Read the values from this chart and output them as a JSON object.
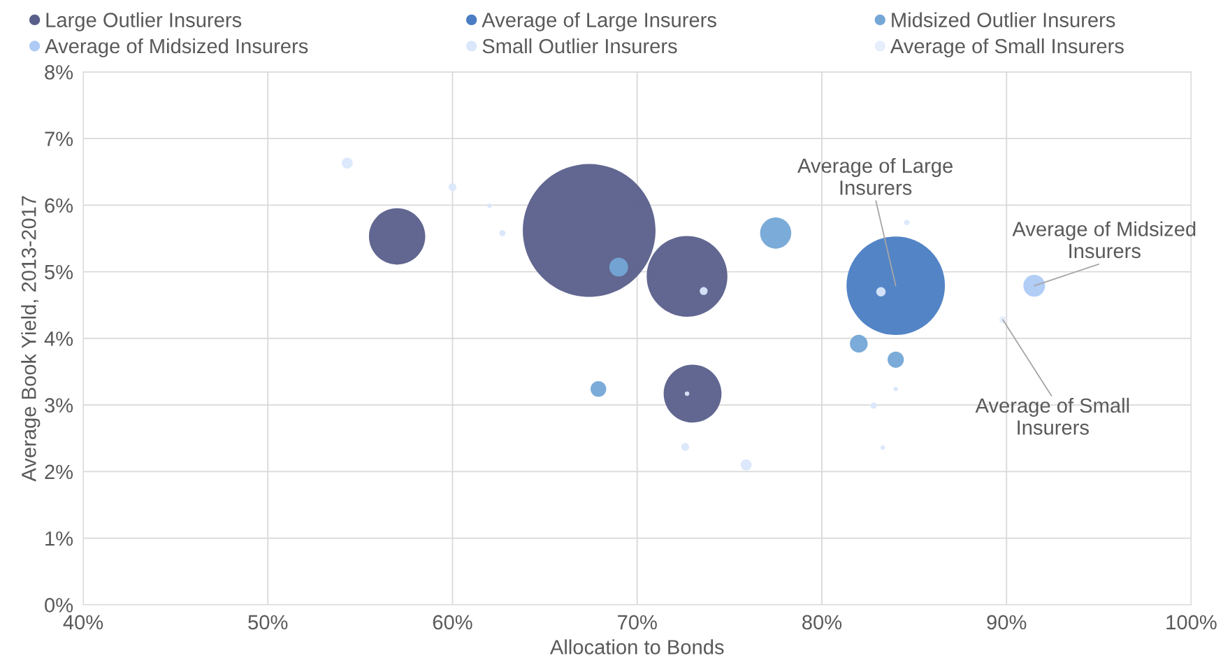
{
  "chart_data": {
    "type": "bubble",
    "xlabel": "Allocation to Bonds",
    "ylabel": "Average Book Yield, 2013-2017",
    "xlim": [
      40,
      100
    ],
    "xticks": [
      {
        "value": 40,
        "label": "40%"
      },
      {
        "value": 50,
        "label": "50%"
      },
      {
        "value": 60,
        "label": "60%"
      },
      {
        "value": 70,
        "label": "70%"
      },
      {
        "value": 80,
        "label": "80%"
      },
      {
        "value": 90,
        "label": "90%"
      },
      {
        "value": 100,
        "label": "100%"
      }
    ],
    "ylim": [
      0,
      8
    ],
    "yticks": [
      {
        "value": 0,
        "label": "0%"
      },
      {
        "value": 1,
        "label": "1%"
      },
      {
        "value": 2,
        "label": "2%"
      },
      {
        "value": 3,
        "label": "3%"
      },
      {
        "value": 4,
        "label": "4%"
      },
      {
        "value": 5,
        "label": "5%"
      },
      {
        "value": 6,
        "label": "6%"
      },
      {
        "value": 7,
        "label": "7%"
      },
      {
        "value": 8,
        "label": "8%"
      }
    ],
    "grid": true,
    "legend": "top",
    "series": [
      {
        "name": "Large Outlier Insurers",
        "color": "#585f8a",
        "x": [
          57.0,
          67.4,
          72.7,
          73.0
        ],
        "values": [
          5.53,
          5.62,
          4.93,
          3.17
        ],
        "sizes": [
          0.18,
          1,
          0.37,
          0.19
        ]
      },
      {
        "name": "Average of Large Insurers",
        "color": "#4a7dc3",
        "x": [
          84.0
        ],
        "values": [
          4.79
        ],
        "sizes": [
          0.55
        ]
      },
      {
        "name": "Midsized Outlier Insurers",
        "color": "#74a7d6",
        "x": [
          69.0,
          77.5,
          67.9,
          82.0,
          84.0
        ],
        "values": [
          5.07,
          5.58,
          3.24,
          3.92,
          3.68
        ],
        "sizes": [
          0.02,
          0.055,
          0.014,
          0.018,
          0.015
        ]
      },
      {
        "name": "Average of Midsized Insurers",
        "color": "#aecbf5",
        "x": [
          91.5
        ],
        "values": [
          4.79
        ],
        "sizes": [
          0.027
        ]
      },
      {
        "name": "Small Outlier Insurers",
        "color": "#dae7fb",
        "x": [
          54.3,
          60.0,
          62.0,
          62.7,
          73.6,
          72.7,
          72.6,
          75.9,
          83.2,
          84.6,
          82.8,
          84.0,
          83.3
        ],
        "values": [
          6.63,
          6.27,
          5.99,
          5.58,
          4.71,
          3.17,
          2.37,
          2.1,
          4.7,
          5.74,
          2.99,
          3.24,
          2.36
        ],
        "sizes": [
          0.0068,
          0.0035,
          0.0012,
          0.0022,
          0.0035,
          0.0012,
          0.0035,
          0.0068,
          0.005,
          0.0017,
          0.0022,
          0.0012,
          0.0012
        ]
      },
      {
        "name": "Average of Small Insurers",
        "color": "#e6eefb",
        "x": [
          89.8
        ],
        "values": [
          4.28
        ],
        "sizes": [
          0.0028
        ]
      }
    ],
    "annotations": [
      {
        "text": "Average of Large\nInsurers",
        "x": 84.0,
        "y": 4.79
      },
      {
        "text": "Average of Midsized\nInsurers",
        "x": 91.5,
        "y": 4.79
      },
      {
        "text": "Average of Small\nInsurers",
        "x": 89.8,
        "y": 4.28
      }
    ]
  }
}
